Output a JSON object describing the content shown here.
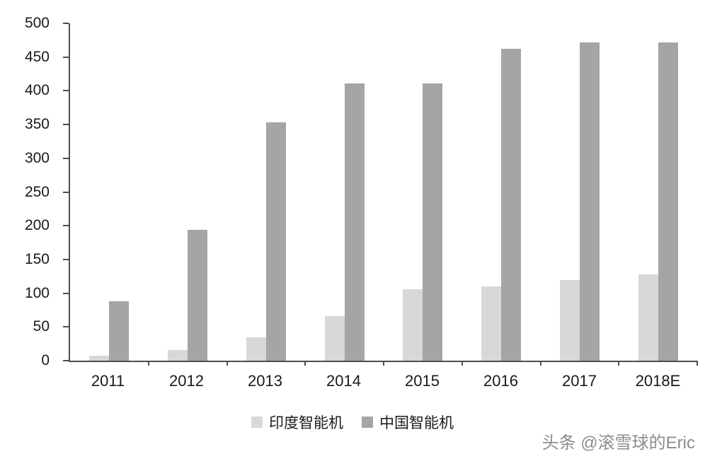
{
  "chart_data": {
    "type": "bar",
    "categories": [
      "2011",
      "2012",
      "2013",
      "2014",
      "2015",
      "2016",
      "2017",
      "2018E"
    ],
    "series": [
      {
        "name": "印度智能机",
        "color": "#d8d8d8",
        "values": [
          7,
          16,
          35,
          66,
          106,
          110,
          120,
          128
        ]
      },
      {
        "name": "中国智能机",
        "color": "#a5a5a5",
        "values": [
          88,
          194,
          353,
          411,
          411,
          462,
          472,
          472
        ]
      }
    ],
    "title": "",
    "xlabel": "",
    "ylabel": "",
    "ylim": [
      0,
      500
    ],
    "yticks": [
      0,
      50,
      100,
      150,
      200,
      250,
      300,
      350,
      400,
      450,
      500
    ],
    "grid": false,
    "legend_position": "bottom"
  },
  "watermark": "头条 @滚雪球的Eric"
}
